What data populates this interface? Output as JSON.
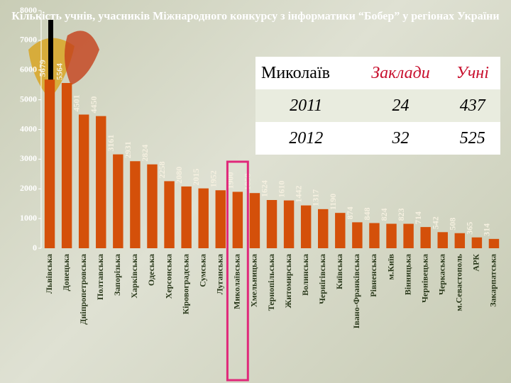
{
  "chart_data": {
    "type": "bar",
    "title": "Кількість учнів, учасників Міжнародного конкурсу з інформатики “Бобер” у регіонах України",
    "categories": [
      "Львівська",
      "Донецька",
      "Дніпропетровська",
      "Полтавська",
      "Запорізька",
      "Харківська",
      "Одеська",
      "Херсонська",
      "Кіровоградська",
      "Сумська",
      "Луганська",
      "Миколаївська",
      "Хмельницька",
      "Тернопільська",
      "Житомирська",
      "Волинська",
      "Чернігівська",
      "Київська",
      "Івано-Франківська",
      "Рівненська",
      "м.Київ",
      "Вінницька",
      "Чернівецька",
      "Черкаська",
      "м.Севастополь",
      "АРК",
      "Закарпатська"
    ],
    "values": [
      5679,
      5564,
      4501,
      4450,
      3161,
      2931,
      2824,
      2258,
      2080,
      2015,
      1952,
      1900,
      1858,
      1624,
      1610,
      1442,
      1317,
      1190,
      874,
      848,
      824,
      823,
      714,
      542,
      508,
      365,
      314
    ],
    "color": "#d4500a",
    "highlight_index": 11,
    "highlight_color": "#e0287a",
    "ylim": [
      0,
      8000
    ],
    "yticks": [
      0,
      1000,
      2000,
      3000,
      4000,
      5000,
      6000,
      7000,
      8000
    ]
  },
  "table": {
    "header": [
      "Миколаїв",
      "Заклади",
      "Учні"
    ],
    "rows": [
      [
        "2011",
        "24",
        "437"
      ],
      [
        "2012",
        "32",
        "525"
      ]
    ]
  }
}
